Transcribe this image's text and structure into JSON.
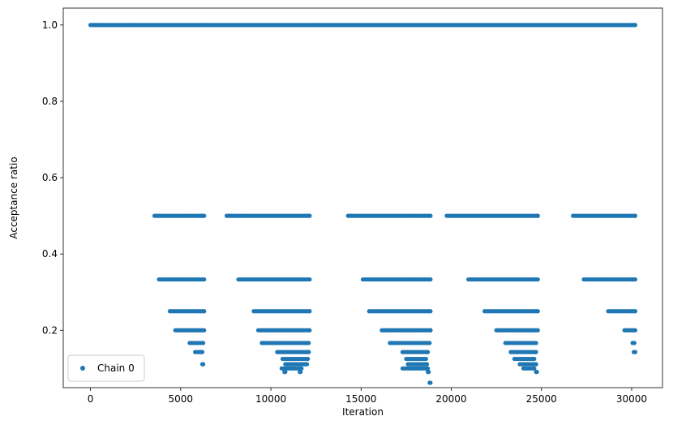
{
  "chart_data": {
    "type": "scatter",
    "title": "",
    "xlabel": "Iteration",
    "ylabel": "Acceptance ratio",
    "xlim": [
      -1510,
      31710
    ],
    "ylim": [
      0.0497,
      1.0443
    ],
    "grid": false,
    "legend": {
      "position": "lower-left",
      "entries": [
        "Chain 0"
      ]
    },
    "x_ticks": [
      0,
      5000,
      10000,
      15000,
      20000,
      25000,
      30000
    ],
    "x_tick_labels": [
      "0",
      "5000",
      "10000",
      "15000",
      "20000",
      "25000",
      "30000"
    ],
    "y_ticks": [
      0.2,
      0.4,
      0.6,
      0.8,
      1.0
    ],
    "y_tick_labels": [
      "0.2",
      "0.4",
      "0.6",
      "0.8",
      "1.0"
    ],
    "series": [
      {
        "name": "Chain 0",
        "color": "#1f77b4",
        "marker": "circle",
        "bands": [
          {
            "y": 1.0,
            "ranges": [
              [
                0,
                30200
              ]
            ]
          },
          {
            "y": 0.5,
            "ranges": [
              [
                3550,
                6300
              ],
              [
                7550,
                12150
              ],
              [
                14280,
                18850
              ],
              [
                19750,
                24800
              ],
              [
                26750,
                30200
              ]
            ]
          },
          {
            "y": 0.3333,
            "ranges": [
              [
                3800,
                6300
              ],
              [
                8200,
                12150
              ],
              [
                15100,
                18850
              ],
              [
                20950,
                24800
              ],
              [
                27350,
                30200
              ]
            ]
          },
          {
            "y": 0.25,
            "ranges": [
              [
                4400,
                6300
              ],
              [
                9050,
                12150
              ],
              [
                15450,
                18850
              ],
              [
                21850,
                24800
              ],
              [
                28700,
                30200
              ]
            ]
          },
          {
            "y": 0.2,
            "ranges": [
              [
                4700,
                6300
              ],
              [
                9300,
                12150
              ],
              [
                16150,
                18850
              ],
              [
                22500,
                24800
              ],
              [
                29600,
                30200
              ]
            ]
          },
          {
            "y": 0.1667,
            "ranges": [
              [
                5500,
                6250
              ],
              [
                9500,
                12100
              ],
              [
                16600,
                18800
              ],
              [
                23000,
                24700
              ],
              [
                30050,
                30150
              ]
            ]
          },
          {
            "y": 0.1429,
            "ranges": [
              [
                5800,
                6200
              ],
              [
                10350,
                12100
              ],
              [
                17300,
                18700
              ],
              [
                23300,
                24700
              ],
              [
                30120,
                30200
              ]
            ]
          },
          {
            "y": 0.125,
            "ranges": [
              [
                10650,
                12050
              ],
              [
                17500,
                18600
              ],
              [
                23500,
                24600
              ]
            ]
          },
          {
            "y": 0.1111,
            "ranges": [
              [
                6200,
                6250
              ],
              [
                10800,
                12000
              ],
              [
                17600,
                18650
              ],
              [
                23800,
                24700
              ]
            ]
          },
          {
            "y": 0.1,
            "ranges": [
              [
                10600,
                11700
              ],
              [
                17300,
                18700
              ],
              [
                24000,
                24600
              ]
            ]
          },
          {
            "y": 0.0909,
            "ranges": [
              [
                10750,
                10800
              ],
              [
                11600,
                11650
              ],
              [
                18700,
                18750
              ],
              [
                24700,
                24750
              ]
            ]
          },
          {
            "y": 0.0625,
            "ranges": [
              [
                18800,
                18850
              ]
            ]
          }
        ]
      }
    ]
  }
}
